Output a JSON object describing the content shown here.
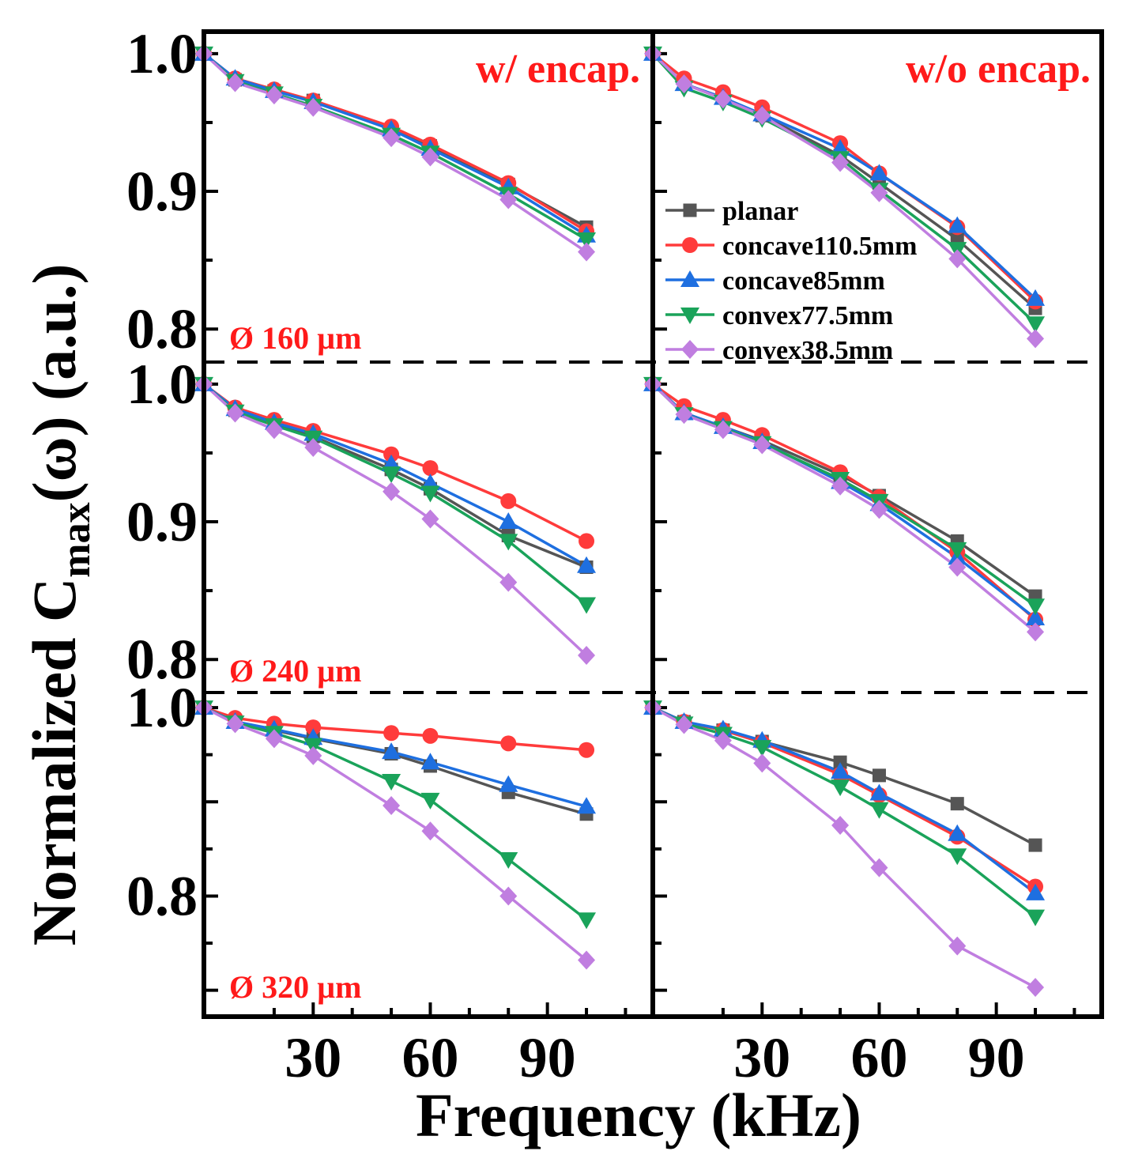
{
  "figure": {
    "ylabel_main": "Normalized C",
    "ylabel_sub": "max",
    "ylabel_tail": "(ω) (a.u.)",
    "xlabel": "Frequency (kHz)",
    "xticks": [
      "30",
      "60",
      "90"
    ],
    "col_titles": [
      "w/ encap.",
      "w/o encap."
    ],
    "row_labels": [
      "Ø 160 µm",
      "Ø 240 µm",
      "Ø 320 µm"
    ],
    "yticks": [
      [
        "1.0",
        "0.9",
        "0.8"
      ],
      [
        "1.0",
        "0.9",
        "0.8"
      ],
      [
        "1.0",
        "0.8"
      ]
    ]
  },
  "colors": {
    "planar": "#555555",
    "concave110.5mm": "#ff3b3b",
    "concave85mm": "#1e6fe0",
    "convex77.5mm": "#1aa35a",
    "convex38.5mm": "#c07ee0",
    "annotation": "#ff1a1a"
  },
  "legend": {
    "placement": "top-right panel, center-right",
    "entries": [
      {
        "name": "planar",
        "marker": "square"
      },
      {
        "name": "concave110.5mm",
        "marker": "circle"
      },
      {
        "name": "concave85mm",
        "marker": "triangle-up"
      },
      {
        "name": "convex77.5mm",
        "marker": "triangle-down"
      },
      {
        "name": "convex38.5mm",
        "marker": "diamond"
      }
    ]
  },
  "chart_data": [
    {
      "type": "line",
      "panel": "160um-w-encap",
      "title": "w/ encap.",
      "label": "Ø 160 µm",
      "x": [
        2,
        10,
        20,
        30,
        50,
        60,
        80,
        100
      ],
      "xlim": [
        2,
        117
      ],
      "ylim": [
        0.776,
        1.016
      ],
      "series": [
        {
          "name": "planar",
          "values": [
            1.0,
            0.981,
            0.973,
            0.966,
            0.945,
            0.933,
            0.905,
            0.874
          ]
        },
        {
          "name": "concave110.5mm",
          "values": [
            1.0,
            0.982,
            0.974,
            0.966,
            0.947,
            0.934,
            0.906,
            0.871
          ]
        },
        {
          "name": "concave85mm",
          "values": [
            1.0,
            0.982,
            0.973,
            0.965,
            0.945,
            0.931,
            0.903,
            0.868
          ]
        },
        {
          "name": "convex77.5mm",
          "values": [
            1.0,
            0.98,
            0.971,
            0.962,
            0.941,
            0.928,
            0.898,
            0.865
          ]
        },
        {
          "name": "convex38.5mm",
          "values": [
            1.0,
            0.979,
            0.97,
            0.961,
            0.939,
            0.925,
            0.894,
            0.856
          ]
        }
      ]
    },
    {
      "type": "line",
      "panel": "160um-wo-encap",
      "title": "w/o encap.",
      "label": "",
      "x": [
        2,
        10,
        20,
        30,
        50,
        60,
        80,
        100
      ],
      "xlim": [
        2,
        117
      ],
      "ylim": [
        0.776,
        1.016
      ],
      "series": [
        {
          "name": "planar",
          "values": [
            1.0,
            0.978,
            0.968,
            0.955,
            0.926,
            0.906,
            0.865,
            0.815
          ]
        },
        {
          "name": "concave110.5mm",
          "values": [
            1.0,
            0.982,
            0.972,
            0.961,
            0.935,
            0.913,
            0.874,
            0.82
          ]
        },
        {
          "name": "concave85mm",
          "values": [
            1.0,
            0.978,
            0.968,
            0.956,
            0.931,
            0.913,
            0.875,
            0.822
          ]
        },
        {
          "name": "convex77.5mm",
          "values": [
            1.0,
            0.975,
            0.965,
            0.953,
            0.924,
            0.901,
            0.858,
            0.804
          ]
        },
        {
          "name": "convex38.5mm",
          "values": [
            1.0,
            0.978,
            0.967,
            0.955,
            0.921,
            0.899,
            0.851,
            0.793
          ]
        }
      ]
    },
    {
      "type": "line",
      "panel": "240um-w-encap",
      "title": "",
      "label": "Ø 240 µm",
      "x": [
        2,
        10,
        20,
        30,
        50,
        60,
        80,
        100
      ],
      "xlim": [
        2,
        117
      ],
      "ylim": [
        0.776,
        1.016
      ],
      "series": [
        {
          "name": "planar",
          "values": [
            1.0,
            0.981,
            0.972,
            0.962,
            0.938,
            0.924,
            0.89,
            0.867
          ]
        },
        {
          "name": "concave110.5mm",
          "values": [
            1.0,
            0.983,
            0.974,
            0.966,
            0.949,
            0.939,
            0.915,
            0.886
          ]
        },
        {
          "name": "concave85mm",
          "values": [
            1.0,
            0.982,
            0.972,
            0.964,
            0.942,
            0.928,
            0.9,
            0.868
          ]
        },
        {
          "name": "convex77.5mm",
          "values": [
            1.0,
            0.98,
            0.97,
            0.961,
            0.935,
            0.921,
            0.886,
            0.84
          ]
        },
        {
          "name": "convex38.5mm",
          "values": [
            1.0,
            0.979,
            0.967,
            0.954,
            0.922,
            0.902,
            0.856,
            0.803
          ]
        }
      ]
    },
    {
      "type": "line",
      "panel": "240um-wo-encap",
      "title": "",
      "label": "",
      "x": [
        2,
        10,
        20,
        30,
        50,
        60,
        80,
        100
      ],
      "xlim": [
        2,
        117
      ],
      "ylim": [
        0.776,
        1.016
      ],
      "series": [
        {
          "name": "planar",
          "values": [
            1.0,
            0.979,
            0.969,
            0.959,
            0.934,
            0.919,
            0.886,
            0.846
          ]
        },
        {
          "name": "concave110.5mm",
          "values": [
            1.0,
            0.984,
            0.974,
            0.963,
            0.936,
            0.918,
            0.878,
            0.829
          ]
        },
        {
          "name": "concave85mm",
          "values": [
            1.0,
            0.979,
            0.969,
            0.958,
            0.929,
            0.913,
            0.874,
            0.83
          ]
        },
        {
          "name": "convex77.5mm",
          "values": [
            1.0,
            0.978,
            0.968,
            0.957,
            0.931,
            0.915,
            0.88,
            0.839
          ]
        },
        {
          "name": "convex38.5mm",
          "values": [
            1.0,
            0.978,
            0.967,
            0.956,
            0.926,
            0.909,
            0.867,
            0.82
          ]
        }
      ]
    },
    {
      "type": "line",
      "panel": "320um-w-encap",
      "title": "",
      "label": "Ø 320 µm",
      "x": [
        2,
        10,
        20,
        30,
        50,
        60,
        80,
        100
      ],
      "xlim": [
        2,
        117
      ],
      "ylim": [
        0.672,
        1.016
      ],
      "series": [
        {
          "name": "planar",
          "values": [
            1.0,
            0.985,
            0.976,
            0.967,
            0.951,
            0.938,
            0.91,
            0.887
          ]
        },
        {
          "name": "concave110.5mm",
          "values": [
            1.0,
            0.989,
            0.983,
            0.979,
            0.973,
            0.97,
            0.962,
            0.955
          ]
        },
        {
          "name": "concave85mm",
          "values": [
            1.0,
            0.985,
            0.977,
            0.968,
            0.953,
            0.942,
            0.918,
            0.895
          ]
        },
        {
          "name": "convex77.5mm",
          "values": [
            1.0,
            0.984,
            0.973,
            0.96,
            0.922,
            0.902,
            0.839,
            0.775
          ]
        },
        {
          "name": "convex38.5mm",
          "values": [
            1.0,
            0.983,
            0.967,
            0.949,
            0.896,
            0.869,
            0.8,
            0.732
          ]
        }
      ]
    },
    {
      "type": "line",
      "panel": "320um-wo-encap",
      "title": "",
      "label": "",
      "x": [
        2,
        10,
        20,
        30,
        50,
        60,
        80,
        100
      ],
      "xlim": [
        2,
        117
      ],
      "ylim": [
        0.672,
        1.016
      ],
      "series": [
        {
          "name": "planar",
          "values": [
            1.0,
            0.985,
            0.976,
            0.964,
            0.942,
            0.928,
            0.898,
            0.854
          ]
        },
        {
          "name": "concave110.5mm",
          "values": [
            1.0,
            0.985,
            0.976,
            0.963,
            0.929,
            0.907,
            0.863,
            0.81
          ]
        },
        {
          "name": "concave85mm",
          "values": [
            1.0,
            0.985,
            0.977,
            0.965,
            0.932,
            0.909,
            0.866,
            0.803
          ]
        },
        {
          "name": "convex77.5mm",
          "values": [
            1.0,
            0.983,
            0.972,
            0.958,
            0.916,
            0.892,
            0.843,
            0.778
          ]
        },
        {
          "name": "convex38.5mm",
          "values": [
            1.0,
            0.982,
            0.965,
            0.941,
            0.875,
            0.83,
            0.747,
            0.703
          ]
        }
      ]
    }
  ]
}
